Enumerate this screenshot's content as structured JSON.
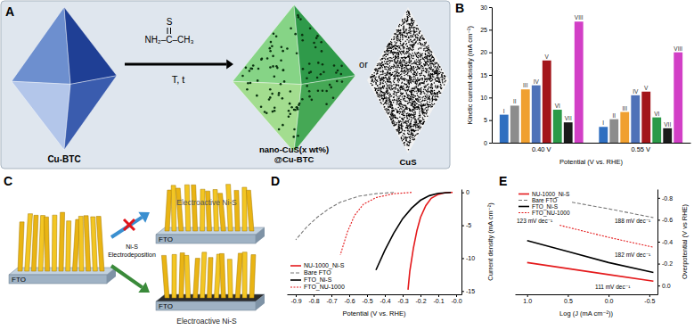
{
  "panel_labels": [
    "A",
    "B",
    "C",
    "D",
    "E"
  ],
  "scheme_a": {
    "reagent_atom": "S",
    "reagent": "NH₂–C–CH₃",
    "conditions": "T, t",
    "start": "Cu-BTC",
    "product": [
      "nano-CuS(x wt%)",
      "@Cu-BTC"
    ],
    "or": "or",
    "alternative": "CuS"
  },
  "scheme_c": {
    "substrate": "FTO",
    "top_label": "Electroactive Ni-S",
    "bottom_label": "Electroactive Ni-S",
    "process": [
      "Ni-S",
      "Electrodeposition"
    ]
  },
  "chart_data": [
    {
      "type": "bar",
      "y_label": "Kinetic current density (mA cm⁻²)",
      "x_label": "Potential (V vs. RHE)",
      "categories": [
        "0.40 V",
        "0.55 V"
      ],
      "ylim": [
        0,
        30
      ],
      "yticks": [
        0,
        5,
        10,
        15,
        20,
        25,
        30
      ],
      "series": [
        {
          "name": "I",
          "color": "#2f6fc0",
          "values": [
            6.2,
            3.5
          ]
        },
        {
          "name": "II",
          "color": "#8c8c8c",
          "values": [
            8.2,
            5.2
          ]
        },
        {
          "name": "III",
          "color": "#f0a030",
          "values": [
            11.8,
            6.8
          ]
        },
        {
          "name": "IV",
          "color": "#4f72b8",
          "values": [
            12.7,
            10.5
          ]
        },
        {
          "name": "V",
          "color": "#a3161b",
          "values": [
            18.2,
            11.3
          ]
        },
        {
          "name": "VI",
          "color": "#2a9a48",
          "values": [
            7.3,
            5.6
          ]
        },
        {
          "name": "VII",
          "color": "#1a1a1a",
          "values": [
            4.5,
            3.2
          ]
        },
        {
          "name": "VIII",
          "color": "#d23fc6",
          "values": [
            26.8,
            20.0
          ]
        }
      ]
    },
    {
      "type": "line",
      "x_label": "Potential (V vs. RHE)",
      "y_label": "Current density (mA cm⁻²)",
      "xlim": [
        -0.95,
        0.03
      ],
      "xticks": [
        -0.9,
        -0.8,
        -0.7,
        -0.6,
        -0.5,
        -0.4,
        -0.3,
        -0.2,
        -0.1,
        {
          "value": 0,
          "label": "-0.0"
        }
      ],
      "ylim": [
        -15.5,
        0.5
      ],
      "yticks": [
        0,
        -5,
        -10,
        -15
      ],
      "legend": "lower left",
      "series": [
        {
          "name": "NU-1000_Ni-S",
          "color": "#e41a1c",
          "line_style": "solid",
          "x": [
            -0.02,
            -0.06,
            -0.1,
            -0.14,
            -0.17,
            -0.2,
            -0.22,
            -0.24,
            -0.26,
            -0.27
          ],
          "values": [
            0,
            -0.05,
            -0.3,
            -0.9,
            -2.0,
            -3.8,
            -5.8,
            -8.5,
            -12.0,
            -14.8
          ]
        },
        {
          "name": "Bare FTO",
          "color": "#777777",
          "line_style": "dashed",
          "x": [
            -0.35,
            -0.45,
            -0.55,
            -0.65,
            -0.72,
            -0.78,
            -0.84,
            -0.9
          ],
          "values": [
            0,
            -0.2,
            -0.6,
            -1.5,
            -2.6,
            -3.8,
            -5.3,
            -7.2
          ]
        },
        {
          "name": "FTO_Ni-S",
          "color": "#000000",
          "line_style": "solid",
          "x": [
            -0.03,
            -0.1,
            -0.15,
            -0.2,
            -0.25,
            -0.3,
            -0.35,
            -0.4,
            -0.45
          ],
          "values": [
            0,
            -0.15,
            -0.5,
            -1.2,
            -2.4,
            -4.0,
            -6.2,
            -8.8,
            -11.8
          ]
        },
        {
          "name": "FTO_NU-1000",
          "color": "#e41a1c",
          "line_style": "dotted",
          "x": [
            -0.25,
            -0.35,
            -0.45,
            -0.52,
            -0.57,
            -0.61,
            -0.65
          ],
          "values": [
            0,
            -0.2,
            -0.8,
            -1.8,
            -3.5,
            -6.0,
            -9.5
          ]
        }
      ]
    },
    {
      "type": "line",
      "x_label": "Log (J (mA cm⁻²))",
      "y_label": "Overpotential (V vs RHE)",
      "xlim": [
        1.15,
        -0.6
      ],
      "xticks": [
        {
          "value": 1,
          "label": "1.0"
        },
        0.5,
        {
          "value": 0,
          "label": "0.0"
        },
        -0.5
      ],
      "ylim": [
        0.08,
        -0.88
      ],
      "yticks": [
        {
          "value": 0,
          "label": "0.0"
        },
        -0.2,
        -0.4,
        -0.6,
        -0.8
      ],
      "legend": "upper left",
      "annotations": [
        "123 mV dec⁻¹",
        "188 mV dec⁻¹",
        "182 mV dec⁻¹",
        "111 mV dec⁻¹"
      ],
      "series": [
        {
          "name": "NU-1000_Ni-S",
          "color": "#e41a1c",
          "line_style": "solid",
          "x": [
            1.0,
            0.5,
            0.0,
            -0.55
          ],
          "values": [
            -0.21,
            -0.155,
            -0.1,
            -0.04
          ]
        },
        {
          "name": "Bare FTO",
          "color": "#777777",
          "line_style": "dashed",
          "x": [
            0.45,
            0.0,
            -0.55
          ],
          "values": [
            -0.76,
            -0.7,
            -0.62
          ]
        },
        {
          "name": "FTO_Ni-S",
          "color": "#000000",
          "line_style": "solid",
          "x": [
            1.0,
            0.5,
            0.0,
            -0.55
          ],
          "values": [
            -0.41,
            -0.31,
            -0.21,
            -0.12
          ]
        },
        {
          "name": "FTO_NU-1000",
          "color": "#e41a1c",
          "line_style": "dotted",
          "x": [
            0.6,
            0.0,
            -0.55
          ],
          "values": [
            -0.55,
            -0.44,
            -0.35
          ]
        }
      ]
    }
  ]
}
